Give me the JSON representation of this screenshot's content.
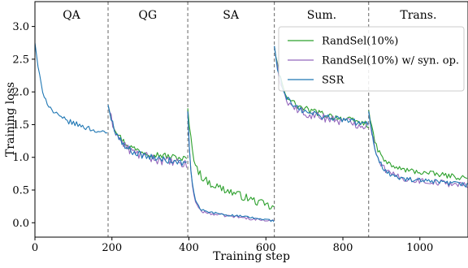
{
  "chart_data": {
    "type": "line",
    "xlabel": "Training step",
    "ylabel": "Training loss",
    "xlim": [
      0,
      1125
    ],
    "ylim": [
      -0.22,
      3.38
    ],
    "xticks": [
      0,
      200,
      400,
      600,
      800,
      1000
    ],
    "yticks": [
      0.0,
      0.5,
      1.0,
      1.5,
      2.0,
      2.5,
      3.0
    ],
    "grid": false,
    "legend_position": "top-right",
    "task_boundaries": [
      190,
      397,
      622,
      867
    ],
    "task_labels": [
      {
        "label": "QA",
        "x": 95
      },
      {
        "label": "QG",
        "x": 293
      },
      {
        "label": "SA",
        "x": 509
      },
      {
        "label": "Sum.",
        "x": 745
      },
      {
        "label": "Trans.",
        "x": 996
      }
    ],
    "series": [
      {
        "name": "RandSel(10%)",
        "color": "#2ca02c",
        "segments": [
          {
            "x0": 190,
            "x1": 397,
            "start": 1.8,
            "plateau": 1.15,
            "end": 0.97,
            "decay": 0.12,
            "noise": 0.05
          },
          {
            "x0": 397,
            "x1": 622,
            "start": 1.75,
            "plateau": 0.72,
            "end": 0.22,
            "decay": 0.06,
            "noise": 0.06
          },
          {
            "x0": 622,
            "x1": 867,
            "start": 2.7,
            "plateau": 1.83,
            "end": 1.5,
            "decay": 0.08,
            "noise": 0.05
          },
          {
            "x0": 867,
            "x1": 1125,
            "start": 1.72,
            "plateau": 0.87,
            "end": 0.68,
            "decay": 0.08,
            "noise": 0.04
          }
        ]
      },
      {
        "name": "RandSel(10%) w/ syn. op.",
        "color": "#9467bd",
        "segments": [
          {
            "x0": 190,
            "x1": 397,
            "start": 1.8,
            "plateau": 1.1,
            "end": 0.88,
            "decay": 0.12,
            "noise": 0.07
          },
          {
            "x0": 397,
            "x1": 622,
            "start": 1.7,
            "plateau": 0.18,
            "end": 0.02,
            "decay": 0.04,
            "noise": 0.02
          },
          {
            "x0": 622,
            "x1": 867,
            "start": 2.7,
            "plateau": 1.75,
            "end": 1.48,
            "decay": 0.08,
            "noise": 0.07
          },
          {
            "x0": 867,
            "x1": 1125,
            "start": 1.7,
            "plateau": 0.72,
            "end": 0.57,
            "decay": 0.08,
            "noise": 0.05
          }
        ]
      },
      {
        "name": "SSR",
        "color": "#1f77b4",
        "segments": [
          {
            "x0": 0,
            "x1": 190,
            "start": 2.75,
            "plateau": 1.7,
            "end": 1.35,
            "decay": 0.1,
            "noise": 0.04
          },
          {
            "x0": 190,
            "x1": 397,
            "start": 1.8,
            "plateau": 1.1,
            "end": 0.9,
            "decay": 0.12,
            "noise": 0.05
          },
          {
            "x0": 397,
            "x1": 622,
            "start": 1.7,
            "plateau": 0.2,
            "end": 0.03,
            "decay": 0.04,
            "noise": 0.02
          },
          {
            "x0": 622,
            "x1": 867,
            "start": 2.7,
            "plateau": 1.77,
            "end": 1.5,
            "decay": 0.08,
            "noise": 0.05
          },
          {
            "x0": 867,
            "x1": 1125,
            "start": 1.7,
            "plateau": 0.7,
            "end": 0.58,
            "decay": 0.08,
            "noise": 0.04
          }
        ]
      }
    ]
  }
}
